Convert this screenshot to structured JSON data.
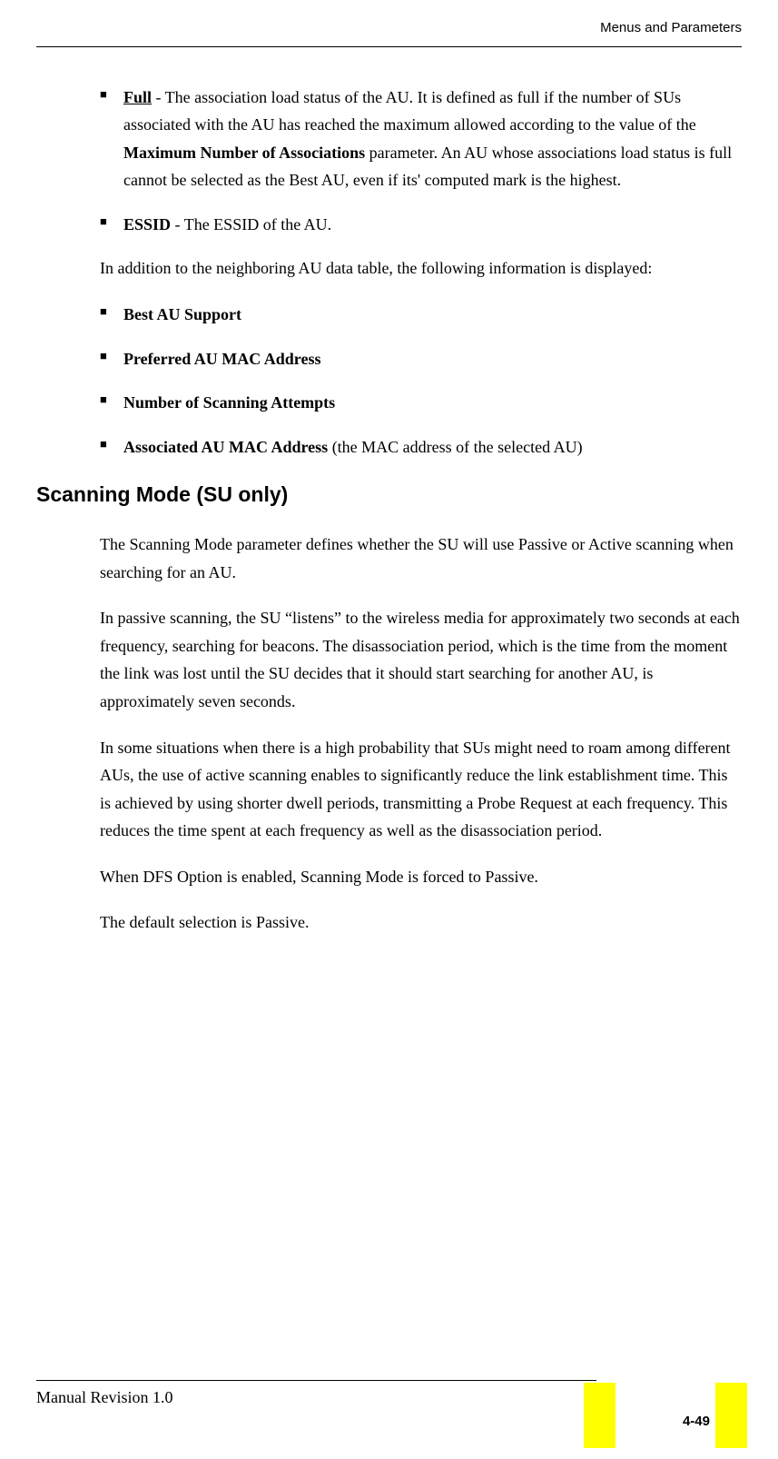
{
  "header": {
    "title": "Menus and Parameters"
  },
  "content": {
    "bullet_full_bold": "Full",
    "bullet_full_text_1": " - The association load status of the AU. It is defined as full if the number of SUs associated with the AU has reached the maximum allowed according to the value of the ",
    "bullet_full_bold2": "Maximum Number of Associations",
    "bullet_full_text_2": " parameter. An AU whose associations load status is full cannot be selected as the Best AU, even if its' computed mark is the highest.",
    "bullet_essid_bold": "ESSID",
    "bullet_essid_text": " - The ESSID of the AU.",
    "para_addition": "In addition to the neighboring AU data table, the following information is displayed:",
    "bullet_best_au": "Best AU Support",
    "bullet_pref_mac": "Preferred AU MAC Address",
    "bullet_num_scan": "Number of Scanning Attempts",
    "bullet_assoc_mac_bold": "Associated AU MAC Address",
    "bullet_assoc_mac_text": " (the MAC address of the selected AU)",
    "heading_scanning": "Scanning Mode (SU only)",
    "para_scan_1": "The Scanning Mode parameter defines whether the SU will use Passive or Active scanning when searching for an AU.",
    "para_scan_2": "In passive scanning, the SU “listens” to the wireless media for approximately two seconds at each frequency, searching for beacons. The disassociation period, which is the time from the moment the link was lost until the SU decides that it should start searching for another AU, is approximately seven seconds.",
    "para_scan_3": "In some situations when there is a high probability that SUs might need to roam among different AUs, the use of active scanning enables to significantly reduce the link establishment time. This is achieved by using shorter dwell periods, transmitting a Probe Request at each frequency. This reduces the time spent at each frequency as well as the disassociation period.",
    "para_scan_4": "When DFS Option is enabled, Scanning Mode is forced to Passive.",
    "para_scan_5": "The default selection is Passive."
  },
  "footer": {
    "revision": "Manual Revision 1.0",
    "page_num": "4-49"
  },
  "glyphs": {
    "square_bullet": "■"
  }
}
